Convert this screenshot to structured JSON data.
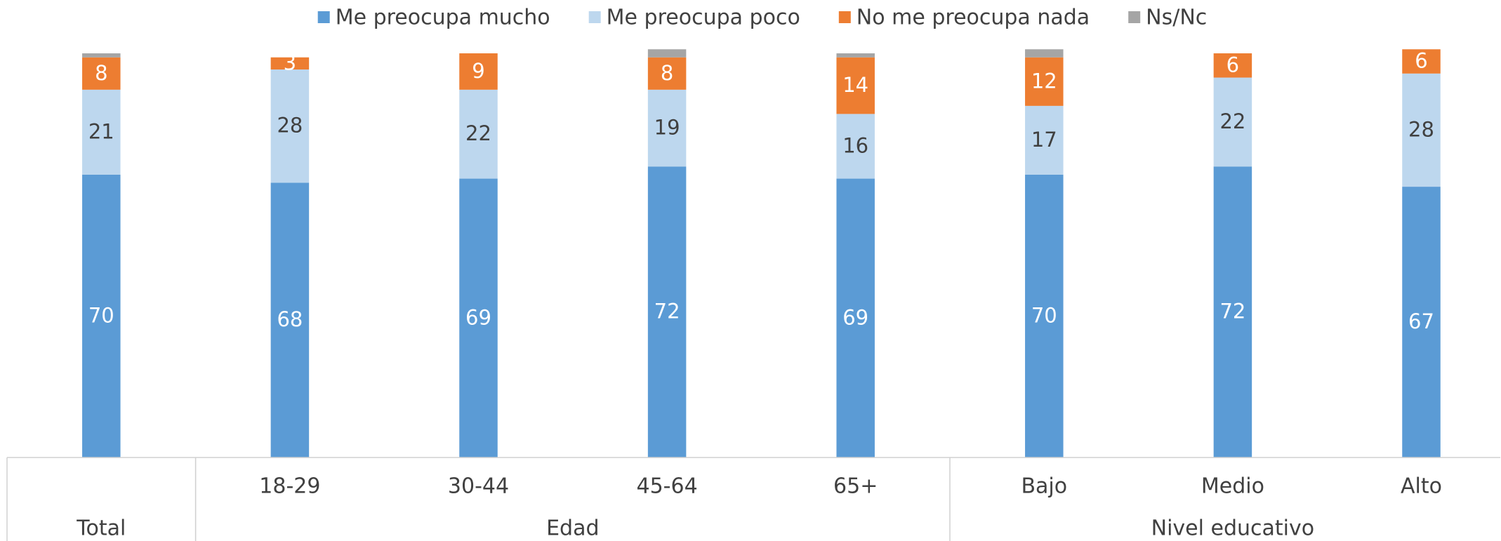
{
  "chart_data": {
    "type": "stacked_bar",
    "categories": [
      null,
      "18-29",
      "30-44",
      "45-64",
      "65+",
      "Bajo",
      "Medio",
      "Alto"
    ],
    "groups": [
      {
        "name": "Total",
        "span": 1
      },
      {
        "name": "Edad",
        "span": 4
      },
      {
        "name": "Nivel educativo",
        "span": 3
      }
    ],
    "series": [
      {
        "name": "Me preocupa mucho",
        "color": "#5b9bd5",
        "label_color": "#ffffff",
        "values": [
          70,
          68,
          69,
          72,
          69,
          70,
          72,
          67
        ]
      },
      {
        "name": "Me preocupa poco",
        "color": "#bdd7ee",
        "label_color": "#404040",
        "values": [
          21,
          28,
          22,
          19,
          16,
          17,
          22,
          28
        ]
      },
      {
        "name": "No me preocupa nada",
        "color": "#ed7d31",
        "label_color": "#ffffff",
        "values": [
          8,
          3,
          9,
          8,
          14,
          12,
          6,
          6
        ]
      },
      {
        "name": "Ns/Nc",
        "color": "#a5a5a5",
        "show_labels": false,
        "values": [
          1,
          0,
          0,
          2,
          1,
          2,
          0,
          0
        ]
      }
    ],
    "ylim": [
      0,
      100
    ],
    "legend": "top"
  }
}
